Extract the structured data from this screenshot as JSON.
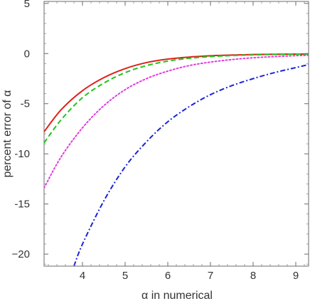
{
  "chart_data": {
    "type": "line",
    "title": "",
    "xlabel": "α in numerical",
    "ylabel": "percent error of α",
    "xlim": [
      3.1,
      9.3
    ],
    "ylim": [
      -21.2,
      5.2
    ],
    "xticks": [
      4,
      5,
      6,
      7,
      8,
      9
    ],
    "yticks": [
      5,
      0,
      -5,
      -10,
      -15,
      -20
    ],
    "xtick_labels": [
      "4",
      "5",
      "6",
      "7",
      "8",
      "9"
    ],
    "ytick_labels": [
      "5",
      "0",
      "-5",
      "-10",
      "-15",
      "−20"
    ],
    "grid": false,
    "series": [
      {
        "style": "solid",
        "color": "#e0201b",
        "x": [
          3.1,
          3.5,
          4.0,
          4.5,
          5.0,
          5.5,
          6.0,
          6.5,
          7.0,
          7.5,
          8.0,
          8.5,
          9.0,
          9.3
        ],
        "y": [
          -7.8,
          -5.6,
          -3.7,
          -2.4,
          -1.5,
          -0.9,
          -0.55,
          -0.35,
          -0.22,
          -0.15,
          -0.1,
          -0.07,
          -0.05,
          -0.04
        ]
      },
      {
        "style": "dashed",
        "color": "#22c41c",
        "x": [
          3.1,
          3.5,
          4.0,
          4.5,
          5.0,
          5.5,
          6.0,
          6.5,
          7.0,
          7.5,
          8.0,
          8.5,
          9.0,
          9.3
        ],
        "y": [
          -8.9,
          -6.6,
          -4.4,
          -2.95,
          -1.9,
          -1.2,
          -0.75,
          -0.47,
          -0.3,
          -0.2,
          -0.13,
          -0.09,
          -0.06,
          -0.05
        ]
      },
      {
        "style": "dotted",
        "color": "#e23ce0",
        "x": [
          3.1,
          3.5,
          4.0,
          4.5,
          5.0,
          5.5,
          6.0,
          6.5,
          7.0,
          7.5,
          8.0,
          8.5,
          9.0,
          9.3
        ],
        "y": [
          -13.4,
          -10.3,
          -7.4,
          -5.2,
          -3.6,
          -2.5,
          -1.75,
          -1.2,
          -0.85,
          -0.6,
          -0.42,
          -0.3,
          -0.21,
          -0.17
        ]
      },
      {
        "style": "dashdot",
        "color": "#1b22d6",
        "x": [
          3.8,
          4.0,
          4.5,
          5.0,
          5.5,
          6.0,
          6.5,
          7.0,
          7.5,
          8.0,
          8.5,
          9.0,
          9.3
        ],
        "y": [
          -21.2,
          -19.0,
          -14.7,
          -11.3,
          -8.8,
          -6.8,
          -5.3,
          -4.1,
          -3.2,
          -2.5,
          -1.9,
          -1.4,
          -1.1
        ]
      }
    ]
  }
}
